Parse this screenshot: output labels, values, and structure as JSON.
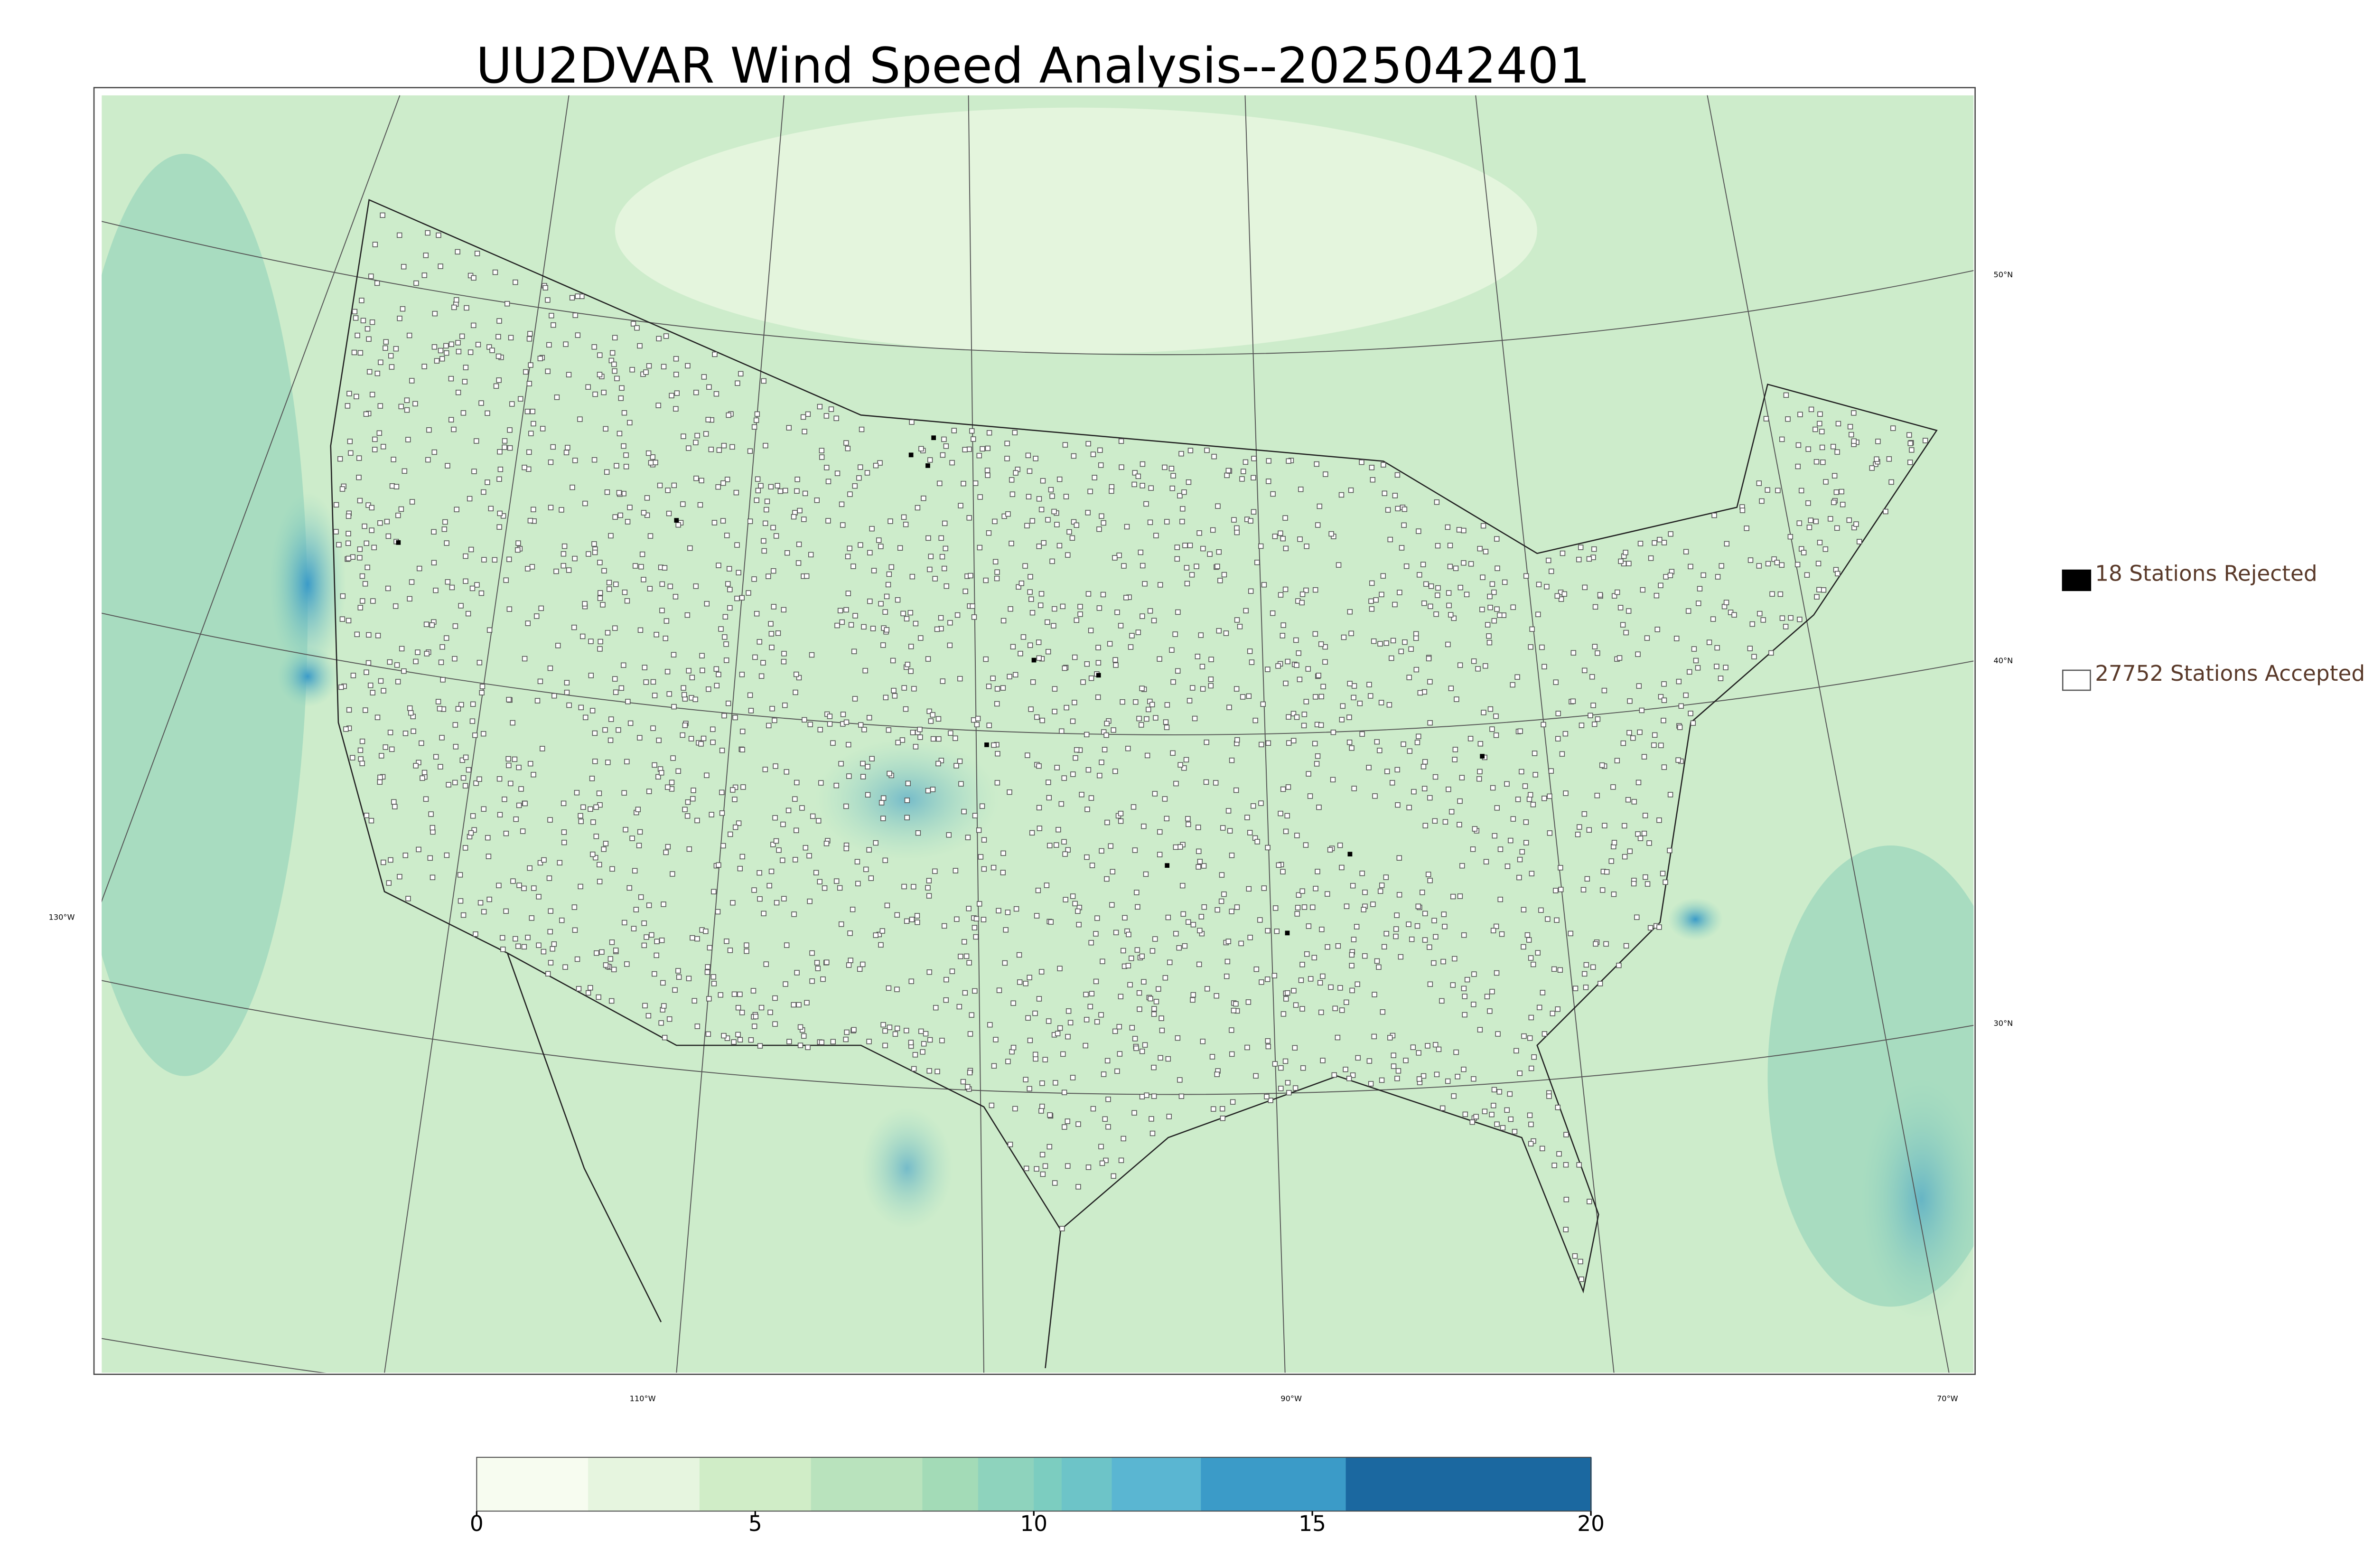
{
  "title": "UU2DVAR Wind Speed Analysis--2025042401",
  "legend": [
    {
      "label": "18 Stations Rejected"
    },
    {
      "label": "27752 Stations Accepted"
    }
  ],
  "map": {
    "latitude_labels": [
      "50°N",
      "40°N",
      "30°N"
    ],
    "longitude_labels": [
      "130°W",
      "110°W",
      "90°W",
      "70°W"
    ]
  },
  "colorbar": {
    "lim": [
      0,
      20
    ],
    "ticks": [
      0,
      5,
      10,
      15,
      20
    ],
    "bounds": [
      0,
      2,
      4,
      6,
      8,
      9,
      10,
      10.5,
      11.4,
      13,
      15.6,
      20
    ],
    "colors": [
      "#f7fcf0",
      "#e6f5df",
      "#d0edc7",
      "#b9e3bd",
      "#a3dbb7",
      "#8ed3bd",
      "#7ccdc0",
      "#6dc4c8",
      "#5ab6d2",
      "#3b9bc8",
      "#1b68a0"
    ]
  }
}
